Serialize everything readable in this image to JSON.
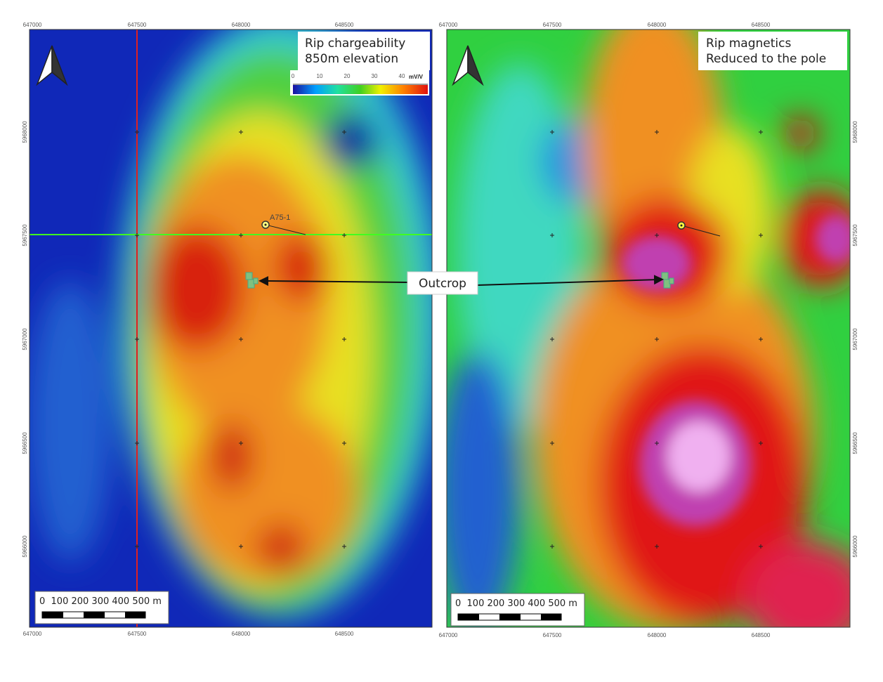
{
  "x_ticks": [
    "647000",
    "647500",
    "648000",
    "648500"
  ],
  "y_ticks": [
    "5968000",
    "5967500",
    "5967000",
    "5966500",
    "5966000"
  ],
  "left_panel": {
    "title_lines": [
      "Rip chargeability",
      "850m elevation"
    ],
    "colorbar": {
      "ticks": [
        "0",
        "10",
        "20",
        "30",
        "40"
      ],
      "unit": "mV/V",
      "colors": [
        "#1a10a0",
        "#00a0ff",
        "#20e0a0",
        "#40d020",
        "#f0f000",
        "#ff8000",
        "#e01010"
      ]
    },
    "sample_label": "A75-1"
  },
  "right_panel": {
    "title_lines": [
      "Rip magnetics",
      "Reduced to the pole"
    ]
  },
  "scalebar": {
    "labels": "0  100 200 300 400 500 m"
  },
  "callout": "Outcrop",
  "north_arrow": "north-arrow-icon"
}
